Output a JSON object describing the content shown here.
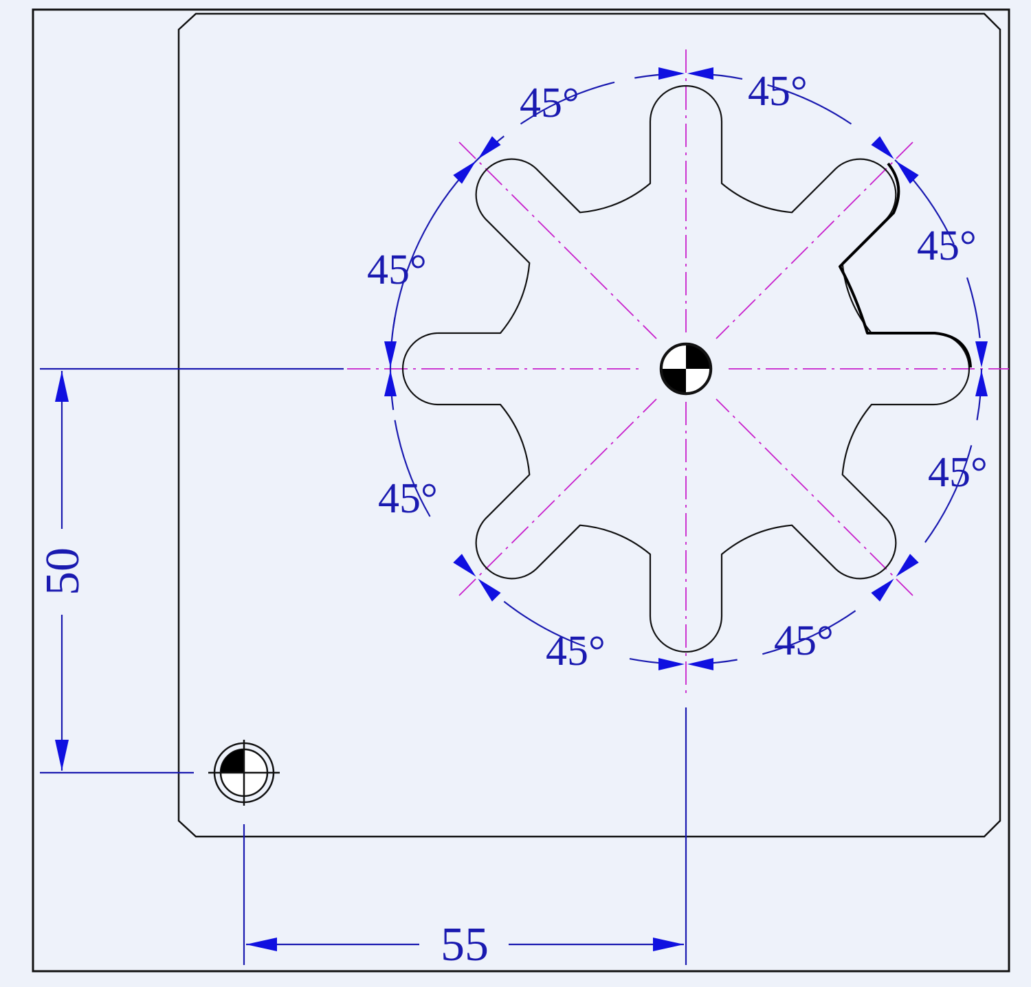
{
  "dimensions": {
    "horizontal": "55",
    "vertical": "50",
    "angle": "45°"
  },
  "colors": {
    "background": "#eef2fa",
    "outline": "#111111",
    "dimension": "#1a1ab0",
    "arrow": "#1010e0",
    "centerline": "#c81ecb"
  },
  "symbols": {
    "origin": "origin-marker-icon",
    "center": "center-of-mass-icon"
  }
}
